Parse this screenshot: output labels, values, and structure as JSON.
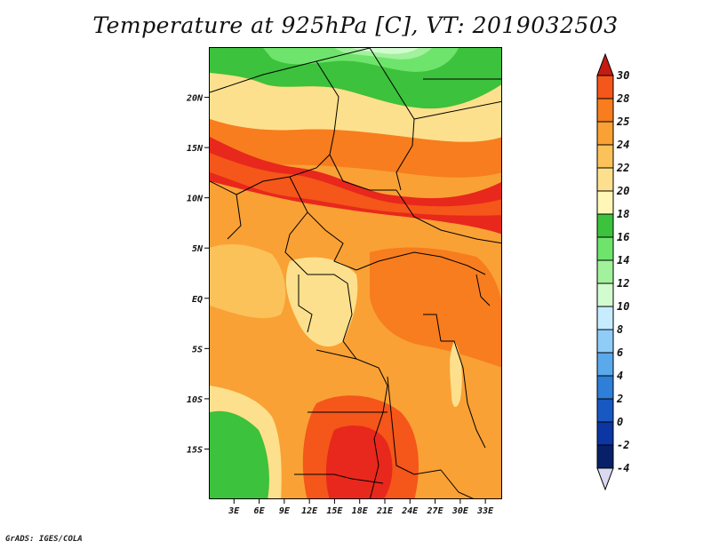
{
  "title": "Temperature at 925hPa [C], VT: 2019032503",
  "credit": "GrADS: IGES/COLA",
  "map": {
    "lat_labels": [
      "20N",
      "15N",
      "10N",
      "5N",
      "EQ",
      "5S",
      "10S",
      "15S"
    ],
    "lat_values": [
      20,
      15,
      10,
      5,
      0,
      -5,
      -10,
      -15
    ],
    "lon_labels": [
      "3E",
      "6E",
      "9E",
      "12E",
      "15E",
      "18E",
      "21E",
      "24E",
      "27E",
      "30E",
      "33E"
    ],
    "lon_values": [
      3,
      6,
      9,
      12,
      15,
      18,
      21,
      24,
      27,
      30,
      33
    ],
    "lon_range": [
      0,
      35
    ],
    "lat_range": [
      -20,
      25
    ]
  },
  "colorbar": {
    "labels": [
      "30",
      "28",
      "25",
      "24",
      "22",
      "20",
      "18",
      "16",
      "14",
      "12",
      "10",
      "8",
      "6",
      "4",
      "2",
      "0",
      "-2",
      "-4"
    ],
    "colors": [
      "#e8281c",
      "#f5561a",
      "#f77d1e",
      "#f9a135",
      "#fbc25a",
      "#fde08d",
      "#fff6b8",
      "#3cc23c",
      "#6ee46c",
      "#a2f19c",
      "#d2fbd0",
      "#c7ecff",
      "#8fcdf7",
      "#5aa9ea",
      "#2d7fd8",
      "#1858c2",
      "#0b36a3",
      "#082068"
    ],
    "top_arrow_color": "#c41c12",
    "bottom_arrow_color": "#d9d9f0"
  }
}
